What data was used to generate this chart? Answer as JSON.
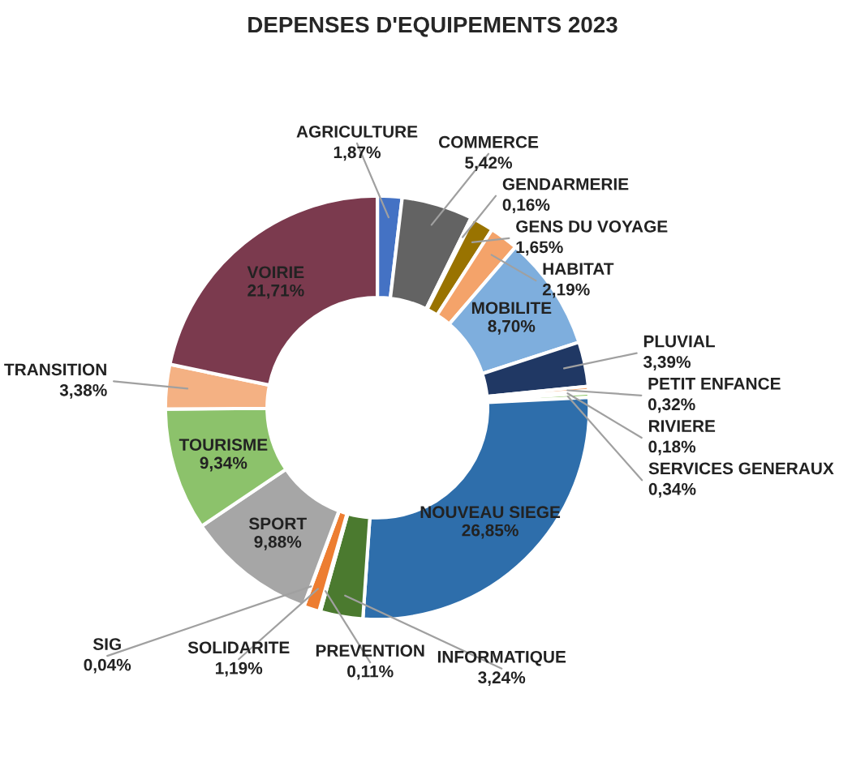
{
  "chart_data": {
    "type": "donut",
    "title": "DEPENSES D'EQUIPEMENTS 2023",
    "legend": false,
    "categories": [
      "AGRICULTURE",
      "COMMERCE",
      "GENDARMERIE",
      "GENS DU VOYAGE",
      "HABITAT",
      "MOBILITE",
      "PLUVIAL",
      "PETIT ENFANCE",
      "RIVIERE",
      "SERVICES GENERAUX",
      "NOUVEAU SIEGE",
      "INFORMATIQUE",
      "PREVENTION",
      "SOLIDARITE",
      "SIG",
      "SPORT",
      "TOURISME",
      "TRANSITION",
      "VOIRIE"
    ],
    "values": [
      1.87,
      5.42,
      0.16,
      1.65,
      2.19,
      8.7,
      3.39,
      0.32,
      0.18,
      0.34,
      26.85,
      3.24,
      0.11,
      1.19,
      0.04,
      9.88,
      9.34,
      3.38,
      21.71
    ],
    "value_labels": [
      "1,87%",
      "5,42%",
      "0,16%",
      "1,65%",
      "2,19%",
      "8,70%",
      "3,39%",
      "0,32%",
      "0,18%",
      "0,34%",
      "26,85%",
      "3,24%",
      "0,11%",
      "1,19%",
      "0,04%",
      "9,88%",
      "9,34%",
      "3,38%",
      "21,71%"
    ],
    "colors": [
      "#4472c4",
      "#636363",
      "#c9c9c9",
      "#997300",
      "#f4a36a",
      "#7eaedd",
      "#203864",
      "#f4a36a",
      "#f8cbad",
      "#8fc86a",
      "#2e6eab",
      "#4b7a2f",
      "#5b9bd5",
      "#ed7d31",
      "#bdbdbd",
      "#a6a6a6",
      "#8cc26b",
      "#f4b183",
      "#7b3a4e"
    ]
  }
}
